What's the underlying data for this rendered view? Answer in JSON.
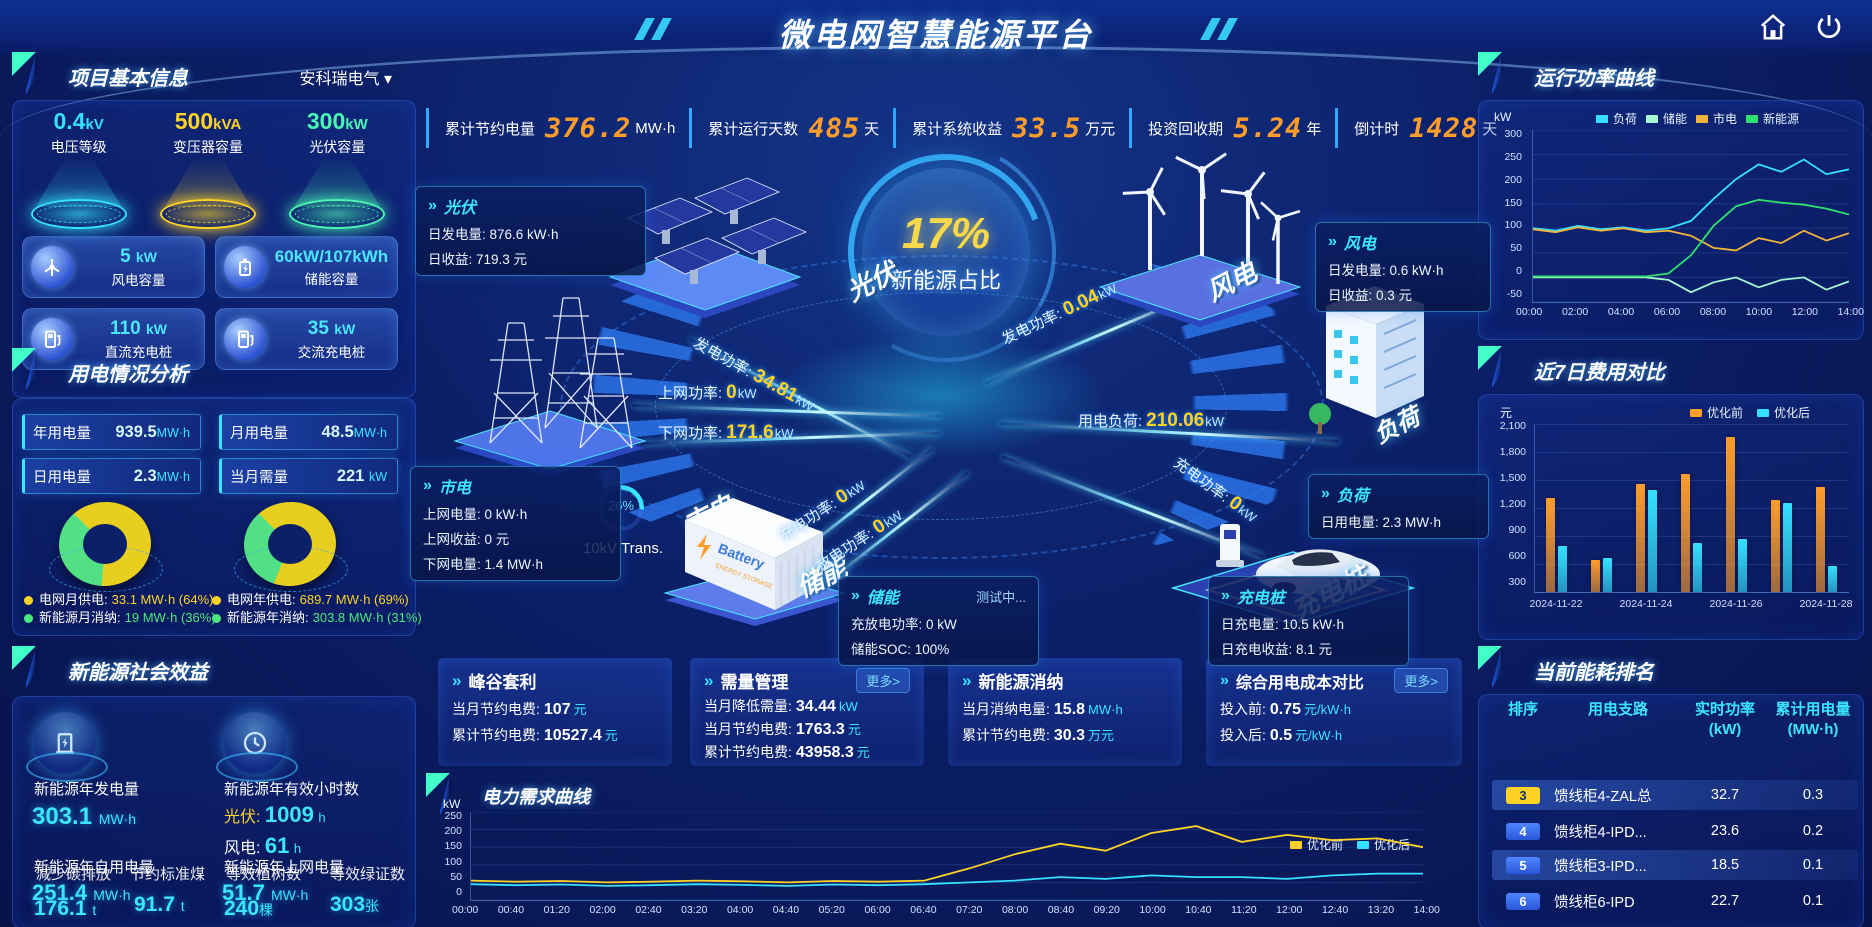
{
  "header": {
    "title": "微电网智慧能源平台"
  },
  "kpis": [
    {
      "label": "累计节约电量",
      "value": "376.2",
      "unit": "MW·h"
    },
    {
      "label": "累计运行天数",
      "value": "485",
      "unit": "天"
    },
    {
      "label": "累计系统收益",
      "value": "33.5",
      "unit": "万元"
    },
    {
      "label": "投资回收期",
      "value": "5.24",
      "unit": "年"
    },
    {
      "label": "倒计时",
      "value": "1428",
      "unit": "天"
    }
  ],
  "project_info": {
    "title": "项目基本信息",
    "company": "安科瑞电气",
    "caret": "▾",
    "cones": [
      {
        "value": "0.4",
        "unit": "kV",
        "label": "电压等级",
        "color": "#35e1ff"
      },
      {
        "value": "500",
        "unit": "kVA",
        "label": "变压器容量",
        "color": "#ffd325"
      },
      {
        "value": "300",
        "unit": "kW",
        "label": "光伏容量",
        "color": "#49f7b2"
      }
    ],
    "tiles": [
      {
        "value": "5",
        "unit": "kW",
        "label": "风电容量",
        "icon": "wind-turbine-icon"
      },
      {
        "value": "60kW/107kWh",
        "unit": "",
        "label": "储能容量",
        "icon": "battery-icon"
      },
      {
        "value": "110",
        "unit": "kW",
        "label": "直流充电桩",
        "icon": "dc-charger-icon"
      },
      {
        "value": "35",
        "unit": "kW",
        "label": "交流充电桩",
        "icon": "ac-charger-icon"
      }
    ]
  },
  "power_usage": {
    "title": "用电情况分析",
    "stats": [
      {
        "label": "年用电量",
        "value": "939.5",
        "unit": "MW·h"
      },
      {
        "label": "月用电量",
        "value": "48.5",
        "unit": "MW·h"
      },
      {
        "label": "日用电量",
        "value": "2.3",
        "unit": "MW·h"
      },
      {
        "label": "当月需量",
        "value": "221",
        "unit": "kW"
      }
    ],
    "donut_month": {
      "grid_pct": 64,
      "renewable_pct": 36,
      "legend": [
        {
          "label": "电网月供电:",
          "value": "33.1 MW·h (64%)",
          "color": "#ffd325"
        },
        {
          "label": "新能源月消纳:",
          "value": "19 MW·h (36%)",
          "color": "#49e87c"
        }
      ]
    },
    "donut_year": {
      "grid_pct": 69,
      "renewable_pct": 31,
      "legend": [
        {
          "label": "电网年供电:",
          "value": "689.7 MW·h (69%)",
          "color": "#ffd325"
        },
        {
          "label": "新能源年消纳:",
          "value": "303.8 MW·h (31%)",
          "color": "#49e87c"
        }
      ]
    }
  },
  "social": {
    "title": "新能源社会效益",
    "gen": {
      "label": "新能源年发电量",
      "value": "303.1",
      "unit": "MW·h"
    },
    "hours": {
      "label": "新能源年有效小时数",
      "pv_k": "光伏:",
      "pv_v": "1009",
      "pv_u": "h",
      "wind_k": "风电:",
      "wind_v": "61",
      "wind_u": "h"
    },
    "self_use": {
      "label": "新能源年自用电量",
      "value": "251.4",
      "unit": "MW·h"
    },
    "to_grid": {
      "label": "新能源年上网电量",
      "value": "51.7",
      "unit": "MW·h"
    },
    "overlay": [
      {
        "label": "减少碳排放",
        "value": "176.1",
        "unit": "t"
      },
      {
        "label": "节约标准煤",
        "value": "91.7",
        "unit": "t"
      },
      {
        "label": "等效植树数",
        "value": "240",
        "unit": "棵"
      },
      {
        "label": "等效绿证数",
        "value": "303",
        "unit": "张"
      }
    ]
  },
  "diagram": {
    "center_pct": "17%",
    "center_label": "新能源占比",
    "transformer_pct": "26%",
    "transformer_label": "10kV Trans.",
    "nodes": {
      "pv": {
        "name": "光伏",
        "platform": "光伏",
        "rows": [
          {
            "t": "日发电量: 876.6 kW·h"
          },
          {
            "t": "日收益: 719.3 元"
          }
        ]
      },
      "grid": {
        "name": "市电",
        "platform": "市电",
        "rows": [
          {
            "t": "上网电量: 0 kW·h"
          },
          {
            "t": "上网收益: 0 元"
          },
          {
            "t": "下网电量: 1.4 MW·h"
          }
        ]
      },
      "storage": {
        "name": "储能",
        "platform": "储能",
        "badge": "测试中...",
        "rows": [
          {
            "t": "充放电功率: 0 kW"
          },
          {
            "t": "储能SOC: 100%"
          }
        ]
      },
      "wind": {
        "name": "风电",
        "platform": "风电",
        "rows": [
          {
            "t": "日发电量: 0.6 kW·h"
          },
          {
            "t": "日收益: 0.3 元"
          }
        ]
      },
      "load": {
        "name": "负荷",
        "platform": "负荷",
        "rows": [
          {
            "t": "日用电量: 2.3 MW·h"
          }
        ]
      },
      "pile": {
        "name": "充电桩",
        "platform": "充电桩",
        "rows": [
          {
            "t": "日充电量: 10.5 kW·h"
          },
          {
            "t": "日充电收益: 8.1 元"
          }
        ]
      }
    },
    "flows": {
      "pv_gen": {
        "k": "发电功率:",
        "v": "34.81",
        "u": "kW"
      },
      "grid_up": {
        "k": "上网功率:",
        "v": "0",
        "u": "kW"
      },
      "grid_down": {
        "k": "下网功率:",
        "v": "171.6",
        "u": "kW"
      },
      "wind_gen": {
        "k": "发电功率:",
        "v": "0.04",
        "u": "kW"
      },
      "load_use": {
        "k": "用电负荷:",
        "v": "210.06",
        "u": "kW"
      },
      "st_charge": {
        "k": "充电功率:",
        "v": "0",
        "u": "kW"
      },
      "st_discharge": {
        "k": "放电功率:",
        "v": "0",
        "u": "kW"
      },
      "pile_charge": {
        "k": "充电功率:",
        "v": "0",
        "u": "kW"
      }
    },
    "battery_text": {
      "line1": "Battery",
      "line2": "ENERGY STORAGE"
    }
  },
  "cards": [
    {
      "title": "峰谷套利",
      "rows": [
        {
          "k": "当月节约电费:",
          "v": "107",
          "u": "元"
        },
        {
          "k": "累计节约电费:",
          "v": "10527.4",
          "u": "元"
        }
      ]
    },
    {
      "title": "需量管理",
      "more": "更多>",
      "rows": [
        {
          "k": "当月降低需量:",
          "v": "34.44",
          "u": "kW"
        },
        {
          "k": "当月节约电费:",
          "v": "1763.3",
          "u": "元"
        },
        {
          "k": "累计节约电费:",
          "v": "43958.3",
          "u": "元"
        }
      ]
    },
    {
      "title": "新能源消纳",
      "rows": [
        {
          "k": "当月消纳电量:",
          "v": "15.8",
          "u": "MW·h"
        },
        {
          "k": "累计节约电费:",
          "v": "30.3",
          "u": "万元"
        }
      ]
    },
    {
      "title": "综合用电成本对比",
      "more": "更多>",
      "rows": [
        {
          "k": "投入前:",
          "v": "0.75",
          "u": "元/kW·h"
        },
        {
          "k": "投入后:",
          "v": "0.5",
          "u": "元/kW·h"
        }
      ]
    }
  ],
  "demand": {
    "title": "电力需求曲线",
    "chart_data": {
      "type": "line",
      "unit": "kW",
      "ylim": [
        0,
        250
      ],
      "yticks": [
        250,
        200,
        150,
        100,
        50,
        0
      ],
      "x": [
        "00:00",
        "00:40",
        "01:20",
        "02:00",
        "02:40",
        "03:20",
        "04:00",
        "04:40",
        "05:20",
        "06:00",
        "06:40",
        "07:20",
        "08:00",
        "08:40",
        "09:20",
        "10:00",
        "10:40",
        "11:20",
        "12:00",
        "12:40",
        "13:20",
        "14:00"
      ],
      "series": [
        {
          "name": "优化前",
          "color": "#ffd325",
          "values": [
            55,
            52,
            54,
            50,
            52,
            55,
            53,
            50,
            54,
            52,
            55,
            90,
            130,
            160,
            140,
            190,
            210,
            165,
            185,
            170,
            175,
            150
          ]
        },
        {
          "name": "优化后",
          "color": "#35e1ff",
          "values": [
            45,
            42,
            44,
            40,
            42,
            45,
            43,
            40,
            44,
            42,
            45,
            50,
            55,
            65,
            60,
            70,
            65,
            65,
            60,
            70,
            75,
            75
          ]
        }
      ]
    }
  },
  "run_power": {
    "title": "运行功率曲线",
    "chart_data": {
      "type": "line",
      "unit": "kW",
      "ylim": [
        -50,
        300
      ],
      "yticks": [
        300,
        250,
        200,
        150,
        100,
        50,
        0,
        -50
      ],
      "x": [
        "00:00",
        "02:00",
        "04:00",
        "06:00",
        "08:00",
        "10:00",
        "12:00",
        "14:00"
      ],
      "series": [
        {
          "name": "负荷",
          "color": "#35e1ff",
          "values": [
            100,
            95,
            105,
            98,
            102,
            95,
            100,
            115,
            160,
            200,
            230,
            215,
            240,
            210,
            220
          ]
        },
        {
          "name": "储能",
          "color": "#a8f5d2",
          "values": [
            0,
            0,
            0,
            0,
            0,
            0,
            -5,
            -30,
            -10,
            0,
            -20,
            -5,
            0,
            -25,
            -8
          ]
        },
        {
          "name": "市电",
          "color": "#f0b43c",
          "values": [
            98,
            92,
            102,
            95,
            100,
            92,
            95,
            85,
            60,
            55,
            80,
            70,
            95,
            75,
            90
          ]
        },
        {
          "name": "新能源",
          "color": "#2ee06e",
          "values": [
            2,
            2,
            2,
            2,
            2,
            2,
            8,
            45,
            105,
            145,
            158,
            152,
            148,
            140,
            128
          ]
        }
      ]
    }
  },
  "cost7": {
    "title": "近7日费用对比",
    "chart_data": {
      "type": "bar",
      "unit": "元",
      "ylim": [
        300,
        2100
      ],
      "yticks": [
        "2,100",
        "1,800",
        "1,500",
        "1,200",
        "900",
        "600",
        "300"
      ],
      "categories": [
        "2024-11-22",
        "2024-11-23",
        "2024-11-24",
        "2024-11-25",
        "2024-11-26",
        "2024-11-27",
        "2024-11-28"
      ],
      "xticks_visible": [
        "2024-11-22",
        "2024-11-24",
        "2024-11-26",
        "2024-11-28"
      ],
      "series": [
        {
          "name": "优化前",
          "color": "#ff9d2b",
          "values": [
            1310,
            640,
            1460,
            1570,
            1960,
            1290,
            1430
          ]
        },
        {
          "name": "优化后",
          "color": "#35e1ff",
          "values": [
            790,
            670,
            1390,
            830,
            870,
            1250,
            580
          ]
        }
      ]
    }
  },
  "ranking": {
    "title": "当前能耗排名",
    "headers": [
      {
        "l1": "排序",
        "l2": ""
      },
      {
        "l1": "用电支路",
        "l2": ""
      },
      {
        "l1": "实时功率",
        "l2": "(kW)"
      },
      {
        "l1": "累计用电量",
        "l2": "(MW·h)"
      }
    ],
    "rows": [
      {
        "rank": "3",
        "branch": "馈线柜4-ZAL总",
        "power": "32.7",
        "energy": "0.3"
      },
      {
        "rank": "4",
        "branch": "馈线柜4-IPD...",
        "power": "23.6",
        "energy": "0.2"
      },
      {
        "rank": "5",
        "branch": "馈线柜3-IPD...",
        "power": "18.5",
        "energy": "0.1"
      },
      {
        "rank": "6",
        "branch": "馈线柜6-IPD",
        "power": "22.7",
        "energy": "0.1"
      }
    ]
  }
}
